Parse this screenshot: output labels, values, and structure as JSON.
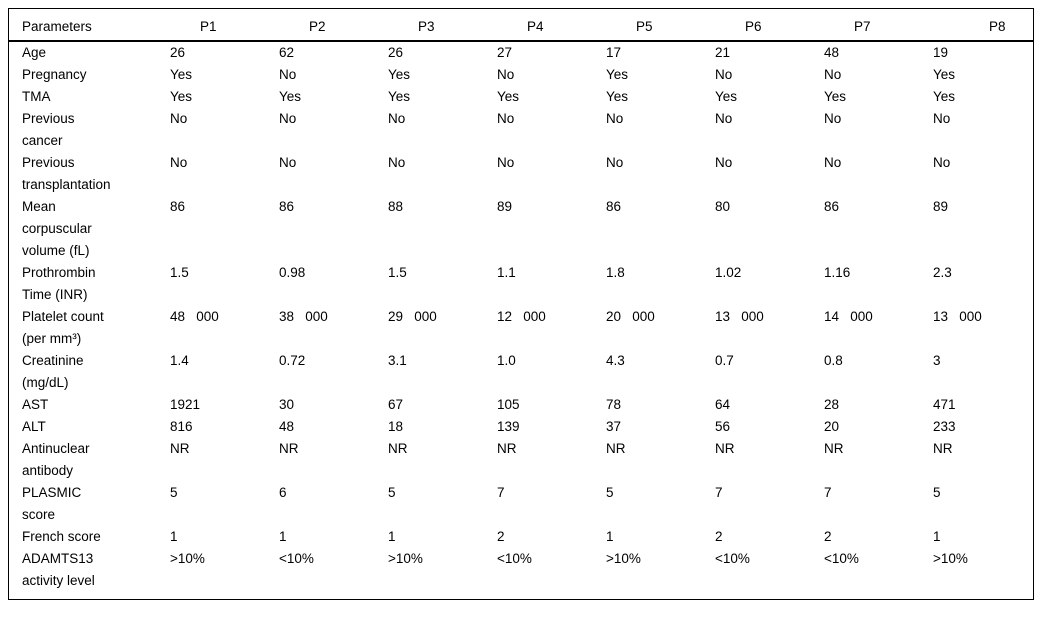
{
  "table": {
    "columns": [
      "Parameters",
      "P1",
      "P2",
      "P3",
      "P4",
      "P5",
      "P6",
      "P7",
      "P8"
    ],
    "rows": [
      {
        "label": "Age",
        "values": [
          "26",
          "62",
          "26",
          "27",
          "17",
          "21",
          "48",
          "19"
        ]
      },
      {
        "label": "Pregnancy",
        "values": [
          "Yes",
          "No",
          "Yes",
          "No",
          "Yes",
          "No",
          "No",
          "Yes"
        ]
      },
      {
        "label": "TMA",
        "values": [
          "Yes",
          "Yes",
          "Yes",
          "Yes",
          "Yes",
          "Yes",
          "Yes",
          "Yes"
        ]
      },
      {
        "label": "Previous\ncancer",
        "values": [
          "No",
          "No",
          "No",
          "No",
          "No",
          "No",
          "No",
          "No"
        ]
      },
      {
        "label": "Previous\ntransplantation",
        "values": [
          "No",
          "No",
          "No",
          "No",
          "No",
          "No",
          "No",
          "No"
        ]
      },
      {
        "label": "Mean\ncorpuscular\nvolume (fL)",
        "values": [
          "86",
          "86",
          "88",
          "89",
          "86",
          "80",
          "86",
          "89"
        ]
      },
      {
        "label": "Prothrombin\nTime (INR)",
        "values": [
          "1.5",
          "0.98",
          "1.5",
          "1.1",
          "1.8",
          "1.02",
          "1.16",
          "2.3"
        ]
      },
      {
        "label": "Platelet count\n(per mm³)",
        "values": [
          "48   000",
          "38   000",
          "29   000",
          "12   000",
          "20   000",
          "13   000",
          "14   000",
          "13   000"
        ]
      },
      {
        "label": "Creatinine\n(mg/dL)",
        "values": [
          "1.4",
          "0.72",
          "3.1",
          "1.0",
          "4.3",
          "0.7",
          "0.8",
          "3"
        ]
      },
      {
        "label": "AST",
        "values": [
          "1921",
          "30",
          "67",
          "105",
          "78",
          "64",
          "28",
          "471"
        ]
      },
      {
        "label": "ALT",
        "values": [
          "816",
          "48",
          "18",
          "139",
          "37",
          "56",
          "20",
          "233"
        ]
      },
      {
        "label": "Antinuclear\nantibody",
        "values": [
          "NR",
          "NR",
          "NR",
          "NR",
          "NR",
          "NR",
          "NR",
          "NR"
        ]
      },
      {
        "label": "PLASMIC\nscore",
        "values": [
          "5",
          "6",
          "5",
          "7",
          "5",
          "7",
          "7",
          "5"
        ]
      },
      {
        "label": "French score",
        "values": [
          "1",
          "1",
          "1",
          "2",
          "1",
          "2",
          "2",
          "1"
        ]
      },
      {
        "label": "ADAMTS13\nactivity level",
        "values": [
          ">10%",
          "<10%",
          ">10%",
          "<10%",
          ">10%",
          "<10%",
          "<10%",
          ">10%"
        ]
      }
    ],
    "colors": {
      "text": "#000000",
      "background": "#ffffff",
      "rule": "#000000"
    }
  }
}
